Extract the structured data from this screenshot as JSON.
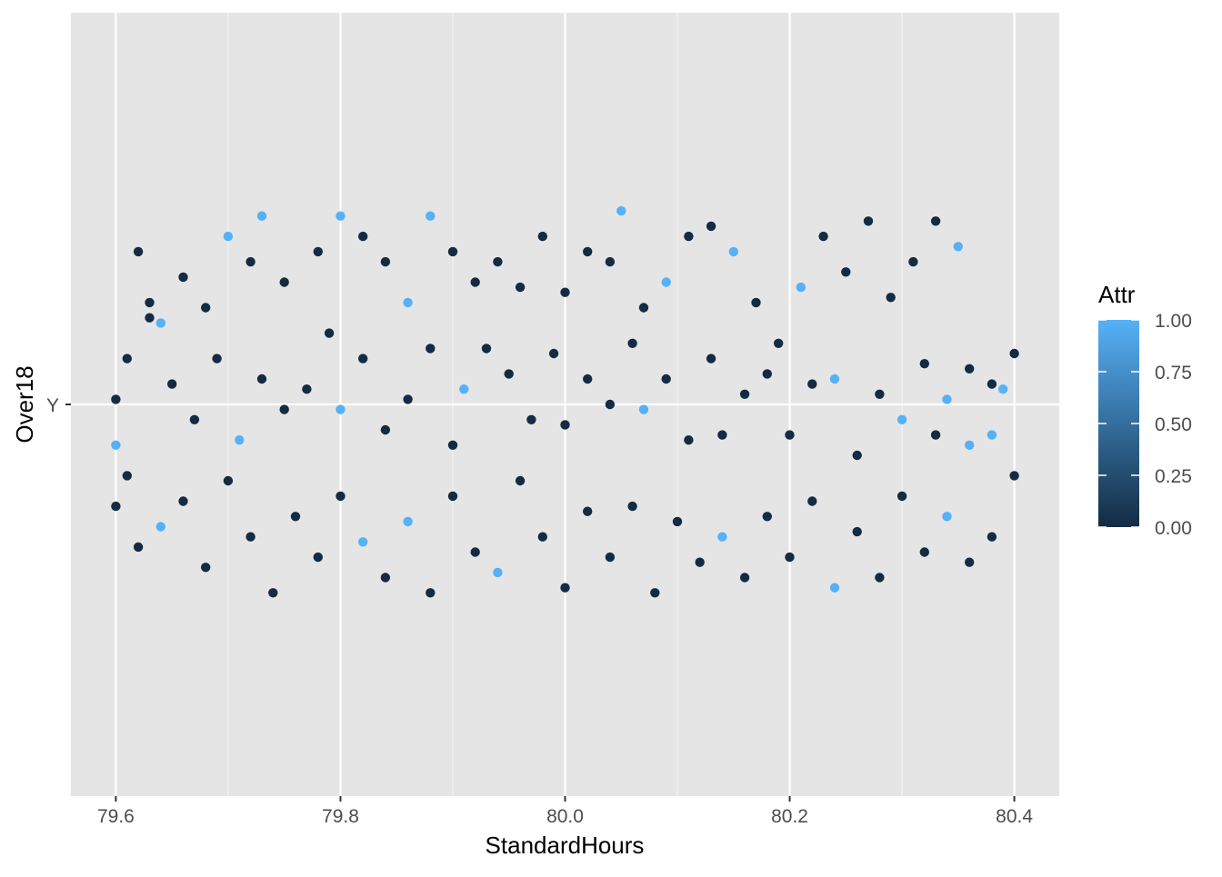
{
  "chart_data": {
    "type": "scatter",
    "title": "",
    "xlabel": "StandardHours",
    "ylabel": "Over18",
    "xlim": [
      79.56,
      80.44
    ],
    "x_ticks": [
      79.6,
      79.8,
      80.0,
      80.2,
      80.4
    ],
    "x_tick_labels": [
      "79.6",
      "79.8",
      "80.0",
      "80.2",
      "80.4"
    ],
    "y_categories": [
      "Y"
    ],
    "grid": true,
    "panel_background": "#e5e5e5",
    "legend": {
      "title": "Attr",
      "placement": "right",
      "type": "colorbar",
      "low_color": "#132b43",
      "high_color": "#56b1f7",
      "range": [
        0,
        1
      ],
      "ticks": [
        0,
        0.25,
        0.5,
        0.75,
        1
      ],
      "tick_labels": [
        "0.00",
        "0.25",
        "0.50",
        "0.75",
        "1.00"
      ]
    },
    "series": [
      {
        "category": "Y",
        "note_jitter": "points jittered horizontally within ±0.4 of 80 and vertically within ±0.4 of the category; values estimated",
        "points": [
          [
            79.62,
            0.3,
            0
          ],
          [
            79.61,
            0.09,
            0
          ],
          [
            79.63,
            0.2,
            0
          ],
          [
            79.64,
            0.16,
            1
          ],
          [
            79.66,
            0.25,
            0
          ],
          [
            79.68,
            0.19,
            0
          ],
          [
            79.7,
            0.33,
            1
          ],
          [
            79.72,
            0.28,
            0
          ],
          [
            79.73,
            0.37,
            1
          ],
          [
            79.75,
            0.24,
            0
          ],
          [
            79.78,
            0.3,
            0
          ],
          [
            79.8,
            0.37,
            1
          ],
          [
            79.82,
            0.33,
            0
          ],
          [
            79.84,
            0.28,
            0
          ],
          [
            79.86,
            0.2,
            1
          ],
          [
            79.88,
            0.37,
            1
          ],
          [
            79.9,
            0.3,
            0
          ],
          [
            79.92,
            0.24,
            0
          ],
          [
            79.94,
            0.28,
            0
          ],
          [
            79.96,
            0.23,
            0
          ],
          [
            79.98,
            0.33,
            0
          ],
          [
            80.0,
            0.22,
            0
          ],
          [
            80.02,
            0.3,
            0
          ],
          [
            80.04,
            0.28,
            0
          ],
          [
            80.05,
            0.38,
            1
          ],
          [
            80.07,
            0.19,
            0
          ],
          [
            80.09,
            0.24,
            1
          ],
          [
            80.11,
            0.33,
            0
          ],
          [
            80.13,
            0.35,
            0
          ],
          [
            80.15,
            0.3,
            1
          ],
          [
            80.17,
            0.2,
            0
          ],
          [
            80.19,
            0.12,
            0
          ],
          [
            80.21,
            0.23,
            1
          ],
          [
            80.23,
            0.33,
            0
          ],
          [
            80.25,
            0.26,
            0
          ],
          [
            80.27,
            0.36,
            0
          ],
          [
            80.29,
            0.21,
            0
          ],
          [
            80.31,
            0.28,
            0
          ],
          [
            80.33,
            0.36,
            0
          ],
          [
            80.35,
            0.31,
            1
          ],
          [
            79.6,
            0.01,
            0
          ],
          [
            79.6,
            -0.08,
            1
          ],
          [
            79.61,
            -0.14,
            0
          ],
          [
            79.63,
            0.17,
            0
          ],
          [
            79.65,
            0.04,
            0
          ],
          [
            79.67,
            -0.03,
            0
          ],
          [
            79.69,
            0.09,
            0
          ],
          [
            79.71,
            -0.07,
            1
          ],
          [
            79.73,
            0.05,
            0
          ],
          [
            79.75,
            -0.01,
            0
          ],
          [
            79.77,
            0.03,
            0
          ],
          [
            79.79,
            0.14,
            0
          ],
          [
            79.8,
            -0.01,
            1
          ],
          [
            79.82,
            0.09,
            0
          ],
          [
            79.84,
            -0.05,
            0
          ],
          [
            79.86,
            0.01,
            0
          ],
          [
            79.88,
            0.11,
            0
          ],
          [
            79.9,
            -0.08,
            0
          ],
          [
            79.91,
            0.03,
            1
          ],
          [
            79.93,
            0.11,
            0
          ],
          [
            79.95,
            0.06,
            0
          ],
          [
            79.97,
            -0.03,
            0
          ],
          [
            79.99,
            0.1,
            0
          ],
          [
            80.0,
            -0.04,
            0
          ],
          [
            80.02,
            0.05,
            0
          ],
          [
            80.04,
            0.0,
            0
          ],
          [
            80.06,
            0.12,
            0
          ],
          [
            80.07,
            -0.01,
            1
          ],
          [
            80.09,
            0.05,
            0
          ],
          [
            80.11,
            -0.07,
            0
          ],
          [
            80.13,
            0.09,
            0
          ],
          [
            80.14,
            -0.06,
            0
          ],
          [
            80.16,
            0.02,
            0
          ],
          [
            80.18,
            0.06,
            0
          ],
          [
            80.2,
            -0.06,
            0
          ],
          [
            80.22,
            0.04,
            0
          ],
          [
            80.24,
            0.05,
            1
          ],
          [
            80.26,
            -0.1,
            0
          ],
          [
            80.28,
            0.02,
            0
          ],
          [
            80.3,
            -0.03,
            1
          ],
          [
            80.32,
            0.08,
            0
          ],
          [
            80.34,
            0.01,
            1
          ],
          [
            80.36,
            -0.08,
            1
          ],
          [
            80.38,
            0.04,
            0
          ],
          [
            80.39,
            0.03,
            1
          ],
          [
            80.4,
            -0.14,
            0
          ],
          [
            80.4,
            0.1,
            0
          ],
          [
            80.38,
            -0.06,
            1
          ],
          [
            80.36,
            0.07,
            0
          ],
          [
            80.33,
            -0.06,
            0
          ],
          [
            79.6,
            -0.2,
            0
          ],
          [
            79.62,
            -0.28,
            0
          ],
          [
            79.64,
            -0.24,
            1
          ],
          [
            79.66,
            -0.19,
            0
          ],
          [
            79.68,
            -0.32,
            0
          ],
          [
            79.7,
            -0.15,
            0
          ],
          [
            79.72,
            -0.26,
            0
          ],
          [
            79.74,
            -0.37,
            0
          ],
          [
            79.76,
            -0.22,
            0
          ],
          [
            79.78,
            -0.3,
            0
          ],
          [
            79.8,
            -0.18,
            0
          ],
          [
            79.82,
            -0.27,
            1
          ],
          [
            79.84,
            -0.34,
            0
          ],
          [
            79.86,
            -0.23,
            1
          ],
          [
            79.88,
            -0.37,
            0
          ],
          [
            79.9,
            -0.18,
            0
          ],
          [
            79.92,
            -0.29,
            0
          ],
          [
            79.94,
            -0.33,
            1
          ],
          [
            79.96,
            -0.15,
            0
          ],
          [
            79.98,
            -0.26,
            0
          ],
          [
            80.0,
            -0.36,
            0
          ],
          [
            80.02,
            -0.21,
            0
          ],
          [
            80.04,
            -0.3,
            0
          ],
          [
            80.06,
            -0.2,
            0
          ],
          [
            80.08,
            -0.37,
            0
          ],
          [
            80.1,
            -0.23,
            0
          ],
          [
            80.12,
            -0.31,
            0
          ],
          [
            80.14,
            -0.26,
            1
          ],
          [
            80.16,
            -0.34,
            0
          ],
          [
            80.18,
            -0.22,
            0
          ],
          [
            80.2,
            -0.3,
            0
          ],
          [
            80.22,
            -0.19,
            0
          ],
          [
            80.24,
            -0.36,
            1
          ],
          [
            80.26,
            -0.25,
            0
          ],
          [
            80.28,
            -0.34,
            0
          ],
          [
            80.3,
            -0.18,
            0
          ],
          [
            80.32,
            -0.29,
            0
          ],
          [
            80.34,
            -0.22,
            1
          ],
          [
            80.36,
            -0.31,
            0
          ],
          [
            80.38,
            -0.26,
            0
          ]
        ]
      }
    ]
  }
}
